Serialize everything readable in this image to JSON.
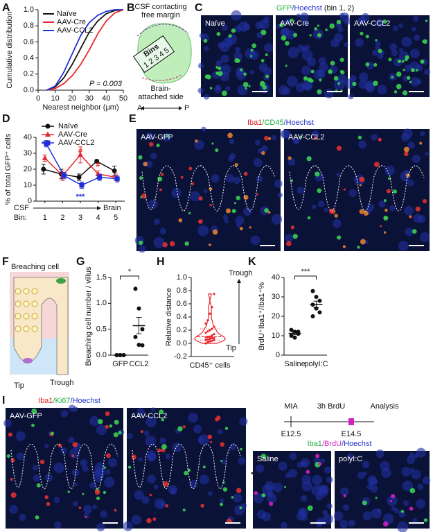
{
  "figure": {
    "panel_labels": [
      "A",
      "B",
      "C",
      "D",
      "E",
      "F",
      "G",
      "H",
      "K",
      "I",
      "J"
    ],
    "b_diagram": {
      "top_label_lines": [
        "CSF contacting",
        "free margin"
      ],
      "bins_label": "Bins",
      "bin_numbers": [
        "1",
        "2",
        "3",
        "4",
        "5"
      ],
      "bottom_label_lines": [
        "Brain-",
        "attached side"
      ],
      "axis_a": "A",
      "axis_p": "P"
    },
    "c_panel": {
      "stain": [
        {
          "text": "GFP",
          "color": "#1fae3b"
        },
        {
          "text": "/Hoechst",
          "color": "#2233cc"
        },
        {
          "text": " (bin 1, 2)",
          "color": "#111111"
        }
      ],
      "images": [
        "Naïve",
        "AAV-Cre",
        "AAV-CCL2"
      ]
    },
    "e_panel": {
      "stain": [
        {
          "text": "Iba1",
          "color": "#e02020"
        },
        {
          "text": "/CD45",
          "color": "#1fae3b"
        },
        {
          "text": "/Hoechst",
          "color": "#2233cc"
        }
      ],
      "images": [
        "AAV-GFP",
        "AAV-CCL2"
      ]
    },
    "f_diagram": {
      "cell_label": "Breaching cell",
      "tip_label": "Tip",
      "trough_label": "Trough"
    },
    "i_panel": {
      "stain": [
        {
          "text": "Iba1",
          "color": "#e02020"
        },
        {
          "text": "/Ki67",
          "color": "#1fae3b"
        },
        {
          "text": "/Hoechst",
          "color": "#2233cc"
        }
      ],
      "images": [
        "AAV-GFP",
        "AAV-CCL2"
      ]
    },
    "j_panel": {
      "timeline": {
        "mia": "MIA",
        "brdu": "3h BrdU",
        "analysis": "Analysis",
        "start": "E12.5",
        "end": "E14.5"
      },
      "stain": [
        {
          "text": "Iba1",
          "color": "#1fae3b"
        },
        {
          "text": "/BrdU",
          "color": "#d020c0"
        },
        {
          "text": "/Hoechst",
          "color": "#2233cc"
        }
      ],
      "images": [
        "Saline",
        "polyI:C"
      ]
    }
  },
  "chart_data": [
    {
      "type": "line",
      "x_label": "Nearest neighbor (μm)",
      "y_label": "Cumulative distribution",
      "annotation": "P = 0.003",
      "x": [
        5,
        10,
        15,
        20,
        25,
        30,
        35,
        40,
        45,
        50
      ],
      "series": [
        {
          "name": "Naïve",
          "color": "#111111",
          "values": [
            0,
            0.04,
            0.15,
            0.32,
            0.52,
            0.72,
            0.86,
            0.95,
            0.99,
            1.0
          ]
        },
        {
          "name": "AAV-Cre",
          "color": "#e8262b",
          "values": [
            0,
            0.02,
            0.08,
            0.18,
            0.32,
            0.5,
            0.7,
            0.86,
            0.96,
            1.0
          ]
        },
        {
          "name": "AAV-CCL2",
          "color": "#1f2fd6",
          "values": [
            0,
            0.05,
            0.22,
            0.45,
            0.68,
            0.84,
            0.93,
            0.98,
            1.0,
            1.0
          ]
        }
      ],
      "xlim": [
        0,
        50
      ],
      "xticks": [
        0,
        10,
        20,
        30,
        40,
        50
      ],
      "ylim": [
        0,
        1
      ],
      "yticks": [
        {
          "value": 0,
          "label": "0.0"
        },
        0.2,
        0.4,
        0.6,
        0.8,
        {
          "value": 1,
          "label": "1.0"
        }
      ]
    },
    {
      "type": "errorline",
      "y_label": "% of total GFP⁺ cells",
      "x_prefix": "Bin:",
      "direction": [
        "CSF",
        "Brain"
      ],
      "categories": [
        "1",
        "2",
        "3",
        "4",
        "5"
      ],
      "series": [
        {
          "name": "Naïve",
          "color": "#111111",
          "values": [
            20,
            17,
            15,
            25,
            19
          ],
          "errors": [
            3,
            3,
            2,
            1,
            3
          ]
        },
        {
          "name": "AAV-Cre",
          "color": "#e8262b",
          "values": [
            27,
            16,
            29,
            17,
            15
          ],
          "errors": [
            2,
            3,
            5,
            2,
            2
          ]
        },
        {
          "name": "AAV-CCL2",
          "color": "#1f2fd6",
          "values": [
            36,
            16,
            10,
            15,
            14
          ],
          "errors": [
            2,
            2,
            2,
            2,
            2
          ]
        }
      ],
      "annotations": [
        {
          "text": "**",
          "color": "#1f2fd6"
        },
        {
          "text": "#",
          "color": "#e8262b"
        },
        {
          "text": "***",
          "color": "#1f2fd6"
        },
        {
          "text": "#",
          "color": "#e8262b"
        }
      ],
      "ylim": [
        0,
        40
      ],
      "yticks": [
        0,
        10,
        20,
        30,
        40
      ]
    },
    {
      "type": "dot",
      "y_label": "Breaching cell number / villus",
      "annotation": "*",
      "categories": [
        "GFP",
        "CCL2"
      ],
      "groups": [
        {
          "values": [
            0,
            0,
            0,
            0,
            0,
            0
          ],
          "mean": 0,
          "sem": 0
        },
        {
          "values": [
            1.28,
            0.9,
            0.5,
            0.35,
            0.2,
            0.19
          ],
          "mean": 0.57,
          "sem": 0.16
        }
      ],
      "color": "#111111",
      "ylim": [
        0,
        1.5
      ],
      "yticks": [
        {
          "value": 0,
          "label": "0.0"
        },
        0.5,
        {
          "value": 1,
          "label": "1.0"
        },
        1.5
      ]
    },
    {
      "type": "violin",
      "y_label": "Relative distance",
      "categories": [
        "CD45⁺ cells"
      ],
      "top_label": "Trough",
      "bottom_label": "Tip",
      "values": [
        0.0,
        0.02,
        0.03,
        0.04,
        0.05,
        0.05,
        0.06,
        0.07,
        0.08,
        0.08,
        0.09,
        0.1,
        0.1,
        0.12,
        0.14,
        0.16,
        0.18,
        0.2,
        0.22,
        0.25,
        0.3,
        0.35,
        0.45,
        0.55,
        0.75
      ],
      "median": 0.1,
      "quartiles": [
        0.05,
        0.22
      ],
      "color": "#e8262b",
      "ylim": [
        -0.2,
        1
      ],
      "yticks": [
        -0.2,
        {
          "value": 0,
          "label": "0.0"
        },
        0.2,
        0.4,
        0.6,
        0.8,
        {
          "value": 1,
          "label": "1.0"
        }
      ]
    },
    {
      "type": "dot",
      "y_label": "BrdU⁺Iba1⁺/Iba1⁺%",
      "annotation": "***",
      "categories": [
        "Saline",
        "polyI:C"
      ],
      "groups": [
        {
          "values": [
            13,
            12,
            11,
            10,
            9,
            12
          ],
          "mean": 11.2,
          "sem": 0.6
        },
        {
          "values": [
            33,
            30,
            28,
            26,
            24,
            22,
            20
          ],
          "mean": 26.1,
          "sem": 1.7
        }
      ],
      "color": "#111111",
      "ylim": [
        0,
        40
      ],
      "yticks": [
        0,
        10,
        20,
        30,
        40
      ]
    }
  ]
}
